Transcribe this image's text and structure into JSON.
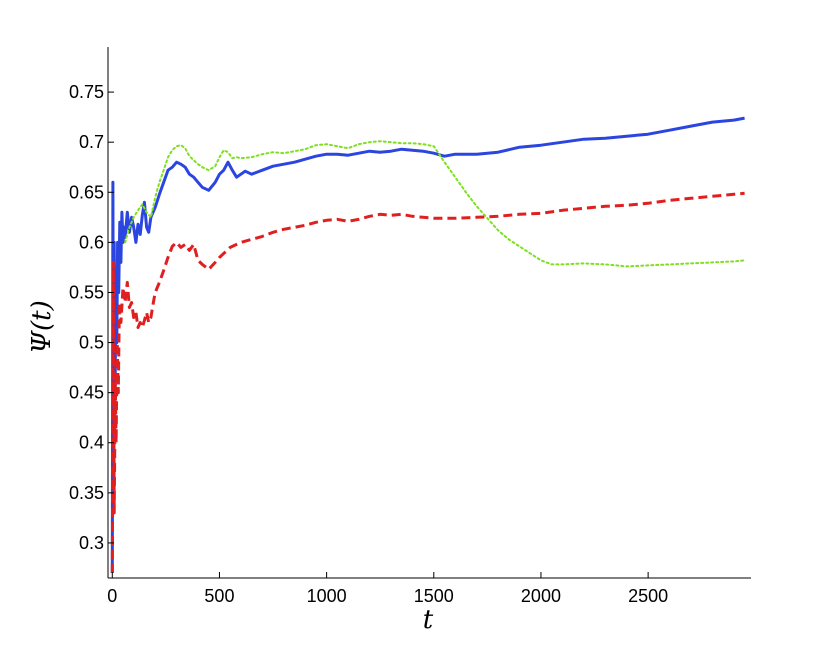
{
  "chart_data": {
    "type": "line",
    "xlabel": "t",
    "ylabel": "Ψ(t)",
    "xlim": [
      -20,
      2980
    ],
    "ylim": [
      0.265,
      0.795
    ],
    "xticks": [
      0,
      500,
      1000,
      1500,
      2000,
      2500
    ],
    "xtick_labels": [
      "0",
      "500",
      "1000",
      "1500",
      "2000",
      "2500"
    ],
    "yticks": [
      0.3,
      0.35,
      0.4,
      0.45,
      0.5,
      0.55,
      0.6,
      0.65,
      0.7,
      0.75
    ],
    "ytick_labels": [
      "0.3",
      "0.35",
      "0.4",
      "0.45",
      "0.5",
      "0.55",
      "0.6",
      "0.65",
      "0.7",
      "0.75"
    ],
    "grid": false,
    "series": [
      {
        "color": "#2b45e0",
        "style": "solid",
        "points": [
          [
            0,
            0.27
          ],
          [
            3,
            0.66
          ],
          [
            6,
            0.33
          ],
          [
            9,
            0.6
          ],
          [
            13,
            0.45
          ],
          [
            17,
            0.56
          ],
          [
            21,
            0.5
          ],
          [
            25,
            0.6
          ],
          [
            30,
            0.55
          ],
          [
            35,
            0.62
          ],
          [
            40,
            0.58
          ],
          [
            45,
            0.63
          ],
          [
            50,
            0.6
          ],
          [
            55,
            0.615
          ],
          [
            60,
            0.605
          ],
          [
            70,
            0.63
          ],
          [
            80,
            0.61
          ],
          [
            90,
            0.625
          ],
          [
            100,
            0.615
          ],
          [
            110,
            0.6
          ],
          [
            120,
            0.618
          ],
          [
            130,
            0.608
          ],
          [
            140,
            0.627
          ],
          [
            150,
            0.64
          ],
          [
            160,
            0.615
          ],
          [
            170,
            0.61
          ],
          [
            180,
            0.625
          ],
          [
            200,
            0.635
          ],
          [
            220,
            0.648
          ],
          [
            240,
            0.66
          ],
          [
            260,
            0.672
          ],
          [
            280,
            0.675
          ],
          [
            300,
            0.68
          ],
          [
            320,
            0.678
          ],
          [
            340,
            0.675
          ],
          [
            360,
            0.668
          ],
          [
            380,
            0.665
          ],
          [
            400,
            0.66
          ],
          [
            420,
            0.655
          ],
          [
            450,
            0.652
          ],
          [
            480,
            0.66
          ],
          [
            500,
            0.668
          ],
          [
            520,
            0.672
          ],
          [
            540,
            0.68
          ],
          [
            560,
            0.672
          ],
          [
            580,
            0.665
          ],
          [
            600,
            0.668
          ],
          [
            620,
            0.671
          ],
          [
            650,
            0.668
          ],
          [
            700,
            0.672
          ],
          [
            750,
            0.676
          ],
          [
            800,
            0.678
          ],
          [
            850,
            0.68
          ],
          [
            900,
            0.683
          ],
          [
            950,
            0.686
          ],
          [
            1000,
            0.688
          ],
          [
            1050,
            0.688
          ],
          [
            1100,
            0.687
          ],
          [
            1150,
            0.689
          ],
          [
            1200,
            0.691
          ],
          [
            1250,
            0.69
          ],
          [
            1300,
            0.691
          ],
          [
            1350,
            0.693
          ],
          [
            1400,
            0.692
          ],
          [
            1450,
            0.691
          ],
          [
            1500,
            0.689
          ],
          [
            1550,
            0.686
          ],
          [
            1600,
            0.688
          ],
          [
            1700,
            0.688
          ],
          [
            1800,
            0.69
          ],
          [
            1900,
            0.695
          ],
          [
            2000,
            0.697
          ],
          [
            2100,
            0.7
          ],
          [
            2200,
            0.703
          ],
          [
            2300,
            0.704
          ],
          [
            2400,
            0.706
          ],
          [
            2500,
            0.708
          ],
          [
            2600,
            0.712
          ],
          [
            2700,
            0.716
          ],
          [
            2800,
            0.72
          ],
          [
            2900,
            0.722
          ],
          [
            2950,
            0.724
          ]
        ]
      },
      {
        "color": "#e02020",
        "style": "dashed",
        "points": [
          [
            0,
            0.27
          ],
          [
            5,
            0.58
          ],
          [
            9,
            0.33
          ],
          [
            14,
            0.46
          ],
          [
            18,
            0.4
          ],
          [
            23,
            0.5
          ],
          [
            28,
            0.45
          ],
          [
            33,
            0.54
          ],
          [
            40,
            0.52
          ],
          [
            50,
            0.555
          ],
          [
            60,
            0.54
          ],
          [
            70,
            0.56
          ],
          [
            80,
            0.535
          ],
          [
            90,
            0.54
          ],
          [
            100,
            0.525
          ],
          [
            110,
            0.53
          ],
          [
            120,
            0.515
          ],
          [
            130,
            0.52
          ],
          [
            140,
            0.515
          ],
          [
            150,
            0.522
          ],
          [
            160,
            0.53
          ],
          [
            170,
            0.52
          ],
          [
            180,
            0.525
          ],
          [
            190,
            0.538
          ],
          [
            200,
            0.55
          ],
          [
            220,
            0.56
          ],
          [
            240,
            0.572
          ],
          [
            260,
            0.585
          ],
          [
            280,
            0.596
          ],
          [
            300,
            0.6
          ],
          [
            320,
            0.595
          ],
          [
            340,
            0.598
          ],
          [
            360,
            0.592
          ],
          [
            380,
            0.598
          ],
          [
            400,
            0.582
          ],
          [
            420,
            0.578
          ],
          [
            450,
            0.573
          ],
          [
            480,
            0.58
          ],
          [
            500,
            0.585
          ],
          [
            550,
            0.595
          ],
          [
            600,
            0.6
          ],
          [
            650,
            0.603
          ],
          [
            700,
            0.606
          ],
          [
            750,
            0.61
          ],
          [
            800,
            0.613
          ],
          [
            850,
            0.615
          ],
          [
            900,
            0.617
          ],
          [
            950,
            0.62
          ],
          [
            1000,
            0.622
          ],
          [
            1050,
            0.623
          ],
          [
            1100,
            0.621
          ],
          [
            1150,
            0.623
          ],
          [
            1200,
            0.626
          ],
          [
            1250,
            0.628
          ],
          [
            1300,
            0.627
          ],
          [
            1350,
            0.628
          ],
          [
            1400,
            0.626
          ],
          [
            1450,
            0.625
          ],
          [
            1500,
            0.624
          ],
          [
            1600,
            0.624
          ],
          [
            1700,
            0.625
          ],
          [
            1800,
            0.626
          ],
          [
            1900,
            0.628
          ],
          [
            2000,
            0.629
          ],
          [
            2100,
            0.632
          ],
          [
            2200,
            0.634
          ],
          [
            2300,
            0.636
          ],
          [
            2400,
            0.637
          ],
          [
            2500,
            0.639
          ],
          [
            2600,
            0.642
          ],
          [
            2700,
            0.644
          ],
          [
            2800,
            0.646
          ],
          [
            2900,
            0.648
          ],
          [
            2950,
            0.649
          ]
        ]
      },
      {
        "color": "#7ee020",
        "style": "dotted",
        "points": [
          [
            60,
            0.6
          ],
          [
            80,
            0.615
          ],
          [
            100,
            0.625
          ],
          [
            120,
            0.632
          ],
          [
            140,
            0.638
          ],
          [
            160,
            0.63
          ],
          [
            180,
            0.625
          ],
          [
            200,
            0.645
          ],
          [
            220,
            0.66
          ],
          [
            240,
            0.672
          ],
          [
            260,
            0.685
          ],
          [
            280,
            0.692
          ],
          [
            300,
            0.696
          ],
          [
            320,
            0.697
          ],
          [
            340,
            0.694
          ],
          [
            360,
            0.686
          ],
          [
            380,
            0.682
          ],
          [
            400,
            0.678
          ],
          [
            420,
            0.675
          ],
          [
            450,
            0.672
          ],
          [
            480,
            0.676
          ],
          [
            500,
            0.685
          ],
          [
            520,
            0.692
          ],
          [
            540,
            0.69
          ],
          [
            560,
            0.684
          ],
          [
            580,
            0.685
          ],
          [
            600,
            0.684
          ],
          [
            650,
            0.685
          ],
          [
            700,
            0.688
          ],
          [
            750,
            0.69
          ],
          [
            800,
            0.689
          ],
          [
            850,
            0.691
          ],
          [
            900,
            0.693
          ],
          [
            950,
            0.697
          ],
          [
            1000,
            0.698
          ],
          [
            1050,
            0.696
          ],
          [
            1100,
            0.694
          ],
          [
            1150,
            0.698
          ],
          [
            1200,
            0.7
          ],
          [
            1250,
            0.701
          ],
          [
            1300,
            0.7
          ],
          [
            1350,
            0.699
          ],
          [
            1400,
            0.699
          ],
          [
            1450,
            0.698
          ],
          [
            1500,
            0.696
          ],
          [
            1550,
            0.68
          ],
          [
            1600,
            0.665
          ],
          [
            1650,
            0.65
          ],
          [
            1700,
            0.636
          ],
          [
            1750,
            0.624
          ],
          [
            1800,
            0.612
          ],
          [
            1850,
            0.603
          ],
          [
            1900,
            0.596
          ],
          [
            1950,
            0.589
          ],
          [
            2000,
            0.582
          ],
          [
            2050,
            0.578
          ],
          [
            2100,
            0.578
          ],
          [
            2200,
            0.579
          ],
          [
            2300,
            0.578
          ],
          [
            2400,
            0.576
          ],
          [
            2500,
            0.577
          ],
          [
            2600,
            0.578
          ],
          [
            2700,
            0.579
          ],
          [
            2800,
            0.58
          ],
          [
            2900,
            0.581
          ],
          [
            2950,
            0.582
          ]
        ]
      }
    ]
  }
}
